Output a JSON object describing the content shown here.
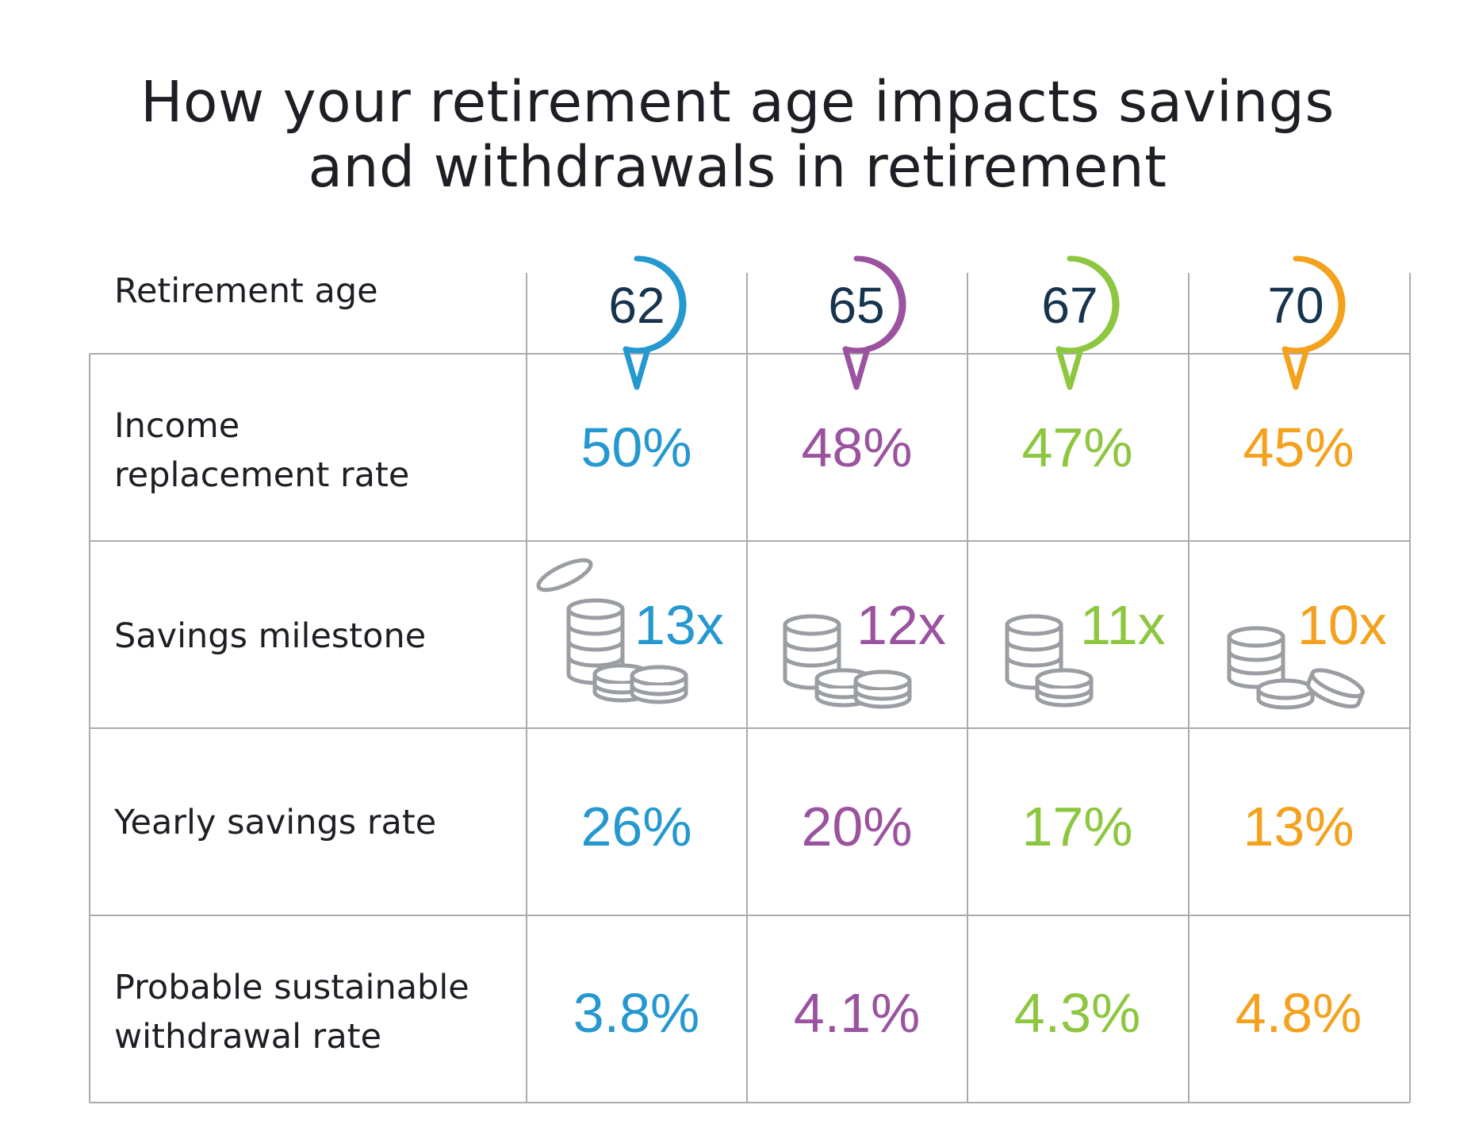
{
  "title_line1": "How your retirement age impacts savings",
  "title_line2": "and withdrawals in retirement",
  "colors": {
    "blue": "#2598cf",
    "purple": "#9b53a0",
    "green": "#8dc63f",
    "orange": "#f4a11d",
    "grid": "#a9abae",
    "coin": "#9a9da2"
  },
  "row_labels": {
    "retirement_age": "Retirement age",
    "income_line1": "Income",
    "income_line2": "replacement rate",
    "savings_milestone": "Savings milestone",
    "yearly_savings": "Yearly savings rate",
    "withdrawal_line1": "Probable sustainable",
    "withdrawal_line2": "withdrawal rate"
  },
  "columns": [
    {
      "age": "62",
      "income_replacement": "50%",
      "savings_milestone": "13x",
      "yearly_savings": "26%",
      "withdrawal_rate": "3.8%",
      "color": "blue",
      "coin_icon": "coin-stack-icon"
    },
    {
      "age": "65",
      "income_replacement": "48%",
      "savings_milestone": "12x",
      "yearly_savings": "20%",
      "withdrawal_rate": "4.1%",
      "color": "purple",
      "coin_icon": "coin-stack-icon"
    },
    {
      "age": "67",
      "income_replacement": "47%",
      "savings_milestone": "11x",
      "yearly_savings": "17%",
      "withdrawal_rate": "4.3%",
      "color": "green",
      "coin_icon": "coin-stack-icon"
    },
    {
      "age": "70",
      "income_replacement": "45%",
      "savings_milestone": "10x",
      "yearly_savings": "13%",
      "withdrawal_rate": "4.8%",
      "color": "orange",
      "coin_icon": "coin-stack-icon"
    }
  ]
}
